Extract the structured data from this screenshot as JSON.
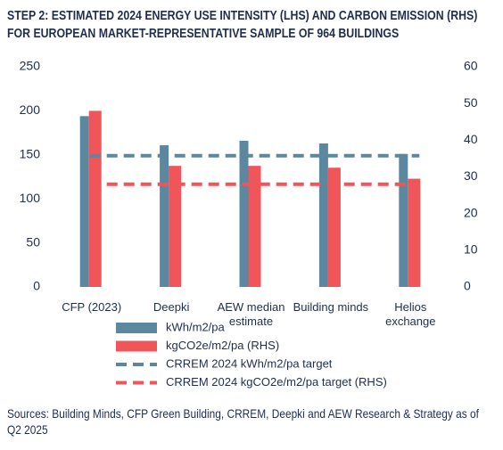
{
  "chart_data": {
    "type": "bar",
    "title": "STEP 2: ESTIMATED 2024 ENERGY USE INTENSITY (LHS) AND CARBON EMISSION (RHS) FOR EUROPEAN MARKET-REPRESENTATIVE SAMPLE OF 964 BUILDINGS",
    "categories": [
      "CFP (2023)",
      "Deepki",
      "AEW median estimate",
      "Building minds",
      "Helios exchange"
    ],
    "series": [
      {
        "name": "kWh/m2/pa",
        "color": "#5b87a0",
        "values": [
          194,
          161,
          166,
          163,
          151
        ]
      },
      {
        "name": "kgCO2e/m2/pa (RHS)",
        "color": "#f0555a",
        "values": [
          48,
          33,
          33,
          32.5,
          29.5
        ],
        "axis": "y2"
      }
    ],
    "targets": [
      {
        "name": "CRREM 2024 kWh/m2/pa target",
        "color": "#5b87a0",
        "value": 149
      },
      {
        "name": "CRREM 2024 kgCO2e/m2/pa target (RHS)",
        "color": "#f0555a",
        "value": 28,
        "axis": "y2"
      }
    ],
    "ylim": [
      0,
      250
    ],
    "yticks": [
      0,
      50,
      100,
      150,
      200,
      250
    ],
    "y2lim": [
      0,
      60
    ],
    "y2ticks": [
      0,
      10,
      20,
      30,
      40,
      50,
      60
    ],
    "grid": false,
    "source": "Sources: Building Minds, CFP Green Building, CRREM, Deepki and AEW Research & Strategy as of Q2 2025"
  }
}
